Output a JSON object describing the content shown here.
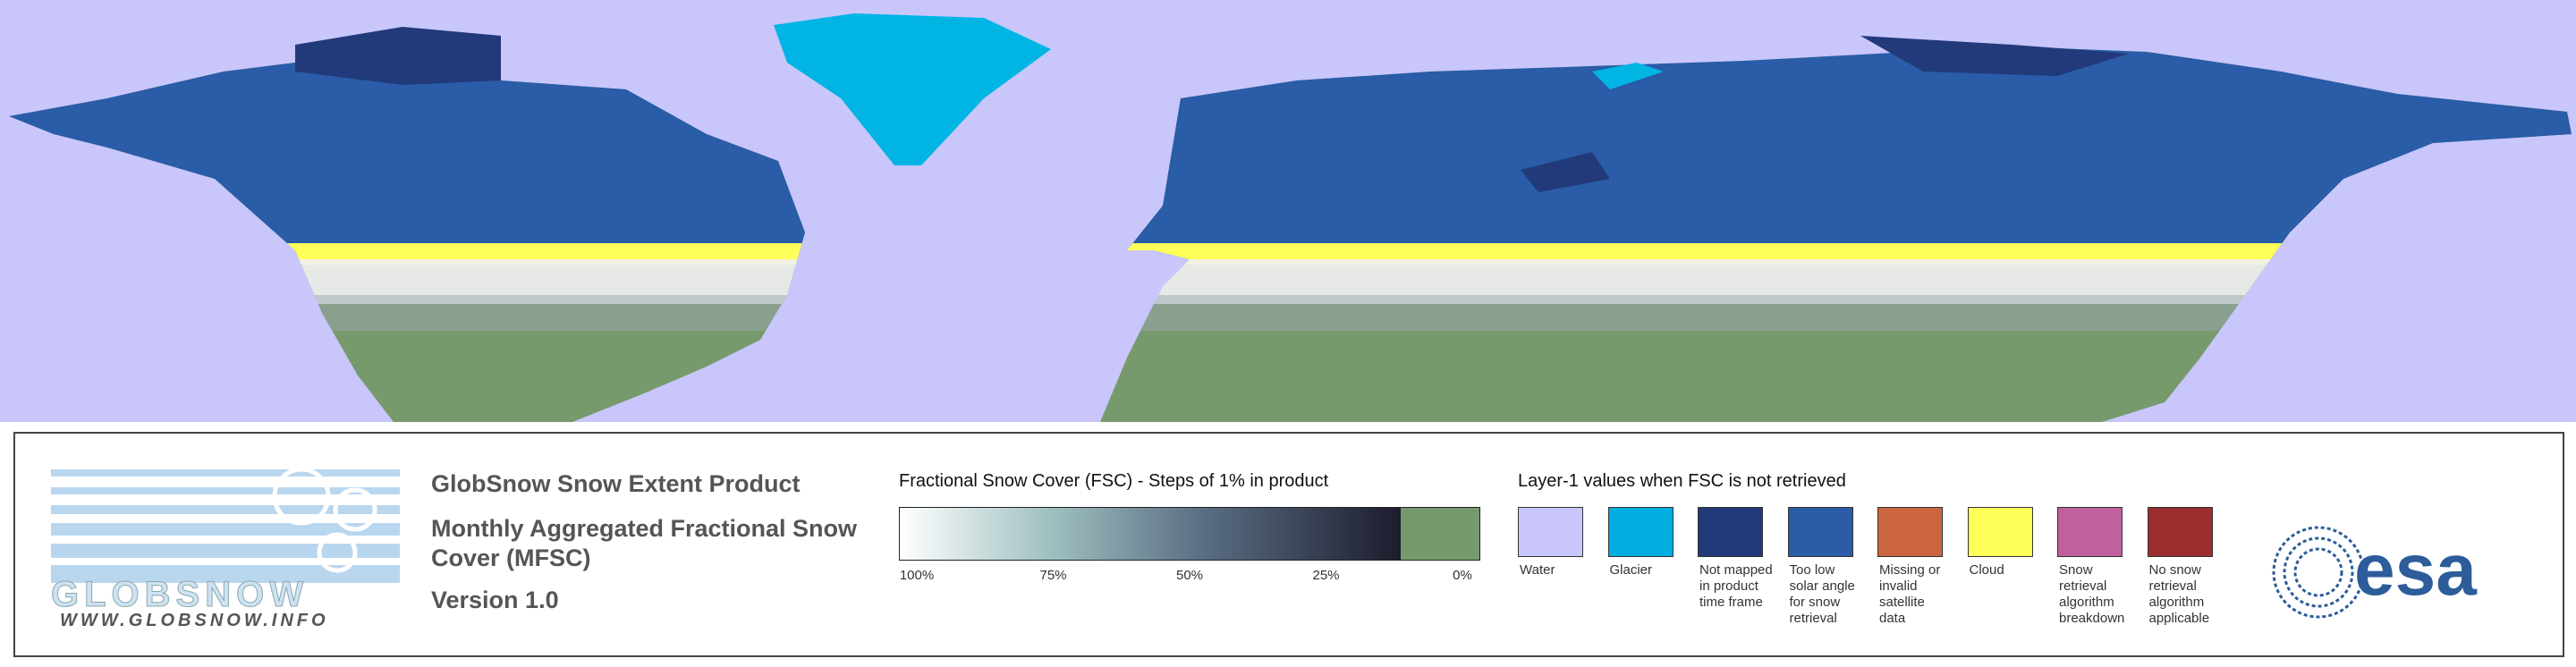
{
  "logo": {
    "name": "GLOBSNOW",
    "url": "WWW.GLOBSNOW.INFO"
  },
  "product": {
    "title": "GlobSnow Snow Extent Product",
    "subtitle": "Monthly Aggregated Fractional Snow Cover (MFSC)",
    "version": "Version 1.0"
  },
  "fsc_legend": {
    "title": "Fractional Snow Cover (FSC) - Steps of 1% in product",
    "ticks": [
      "100%",
      "75%",
      "50%",
      "25%",
      "0%"
    ]
  },
  "layer1_legend": {
    "title": "Layer-1 values when FSC is not retrieved",
    "items": [
      {
        "label": "Water",
        "color": "#c8c6fb"
      },
      {
        "label": "Glacier",
        "color": "#00aee0"
      },
      {
        "label": "Not mapped in product time frame",
        "color": "#223a7a"
      },
      {
        "label": "Too low solar angle for snow retrieval",
        "color": "#2a5ca8"
      },
      {
        "label": "Missing or invalid satellite data",
        "color": "#cc6640"
      },
      {
        "label": "Cloud",
        "color": "#ffff5a"
      },
      {
        "label": "Snow retrieval algorithm breakdown",
        "color": "#c0609c"
      },
      {
        "label": "No snow retrieval algorithm applicable",
        "color": "#9a2e2e"
      }
    ]
  },
  "esa_logo": "esa"
}
